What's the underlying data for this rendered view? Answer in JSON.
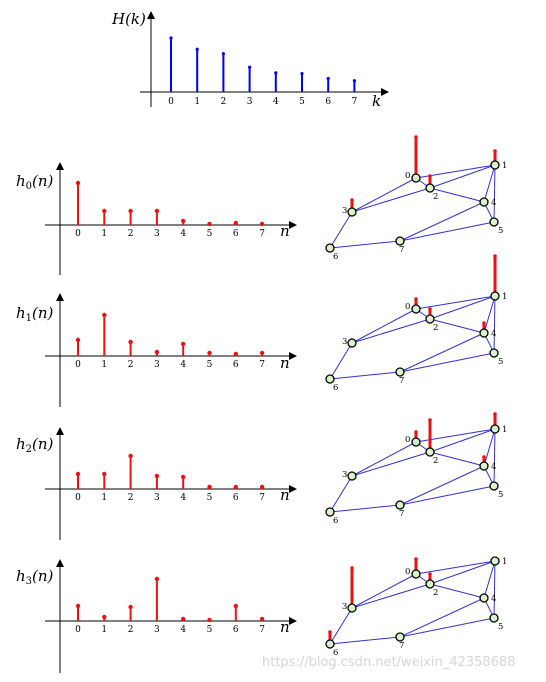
{
  "colors": {
    "blue": "#0000ee",
    "red": "#ee1111",
    "edge": "#3333cc",
    "node_fill": "#d9f2c9"
  },
  "watermark": "https://blog.csdn.net/weixin_42358688",
  "chart_data": [
    {
      "id": "H",
      "type": "stem",
      "ylabel": "H(k)",
      "xlabel": "k",
      "categories": [
        "0",
        "1",
        "2",
        "3",
        "4",
        "5",
        "6",
        "7"
      ],
      "values": [
        2.4,
        1.9,
        1.7,
        1.1,
        0.85,
        0.82,
        0.6,
        0.5
      ],
      "ylim": [
        0,
        3
      ]
    },
    {
      "id": "h0",
      "type": "stem",
      "ylabel": "h0(n)",
      "xlabel": "n",
      "categories": [
        "0",
        "1",
        "2",
        "3",
        "4",
        "5",
        "6",
        "7"
      ],
      "values": [
        0.42,
        0.14,
        0.14,
        0.14,
        0.04,
        0.01,
        0.02,
        0.01
      ],
      "ylim": [
        -0.5,
        0.5
      ]
    },
    {
      "id": "h1",
      "type": "stem",
      "ylabel": "h1(n)",
      "xlabel": "n",
      "categories": [
        "0",
        "1",
        "2",
        "3",
        "4",
        "5",
        "6",
        "7"
      ],
      "values": [
        0.16,
        0.41,
        0.14,
        0.04,
        0.12,
        0.03,
        0.02,
        0.03
      ],
      "ylim": [
        -0.5,
        0.5
      ]
    },
    {
      "id": "h2",
      "type": "stem",
      "ylabel": "h2(n)",
      "xlabel": "n",
      "categories": [
        "0",
        "1",
        "2",
        "3",
        "4",
        "5",
        "6",
        "7"
      ],
      "values": [
        0.15,
        0.15,
        0.33,
        0.13,
        0.12,
        0.02,
        0.02,
        0.02
      ],
      "ylim": [
        -0.5,
        0.5
      ]
    },
    {
      "id": "h3",
      "type": "stem",
      "ylabel": "h3(n)",
      "xlabel": "n",
      "categories": [
        "0",
        "1",
        "2",
        "3",
        "4",
        "5",
        "6",
        "7"
      ],
      "values": [
        0.15,
        0.04,
        0.14,
        0.42,
        0.02,
        0.01,
        0.15,
        0.02
      ],
      "ylim": [
        -0.5,
        0.5
      ]
    }
  ],
  "graph": {
    "nodes": [
      "0",
      "1",
      "2",
      "3",
      "4",
      "5",
      "6",
      "7"
    ]
  }
}
